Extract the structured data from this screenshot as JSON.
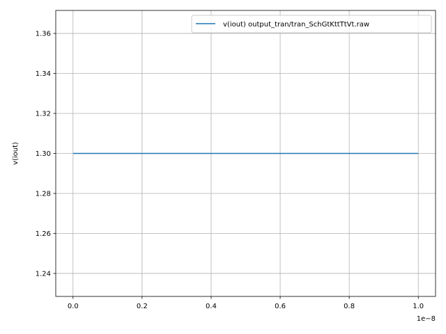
{
  "chart_data": {
    "type": "line",
    "title": "",
    "xlabel": "",
    "ylabel": "v(iout)",
    "x_offset_label": "1e−8",
    "xlim": [
      -0.05,
      1.05
    ],
    "ylim": [
      1.2285,
      1.3715
    ],
    "x_ticks": [
      0.0,
      0.2,
      0.4,
      0.6,
      0.8,
      1.0
    ],
    "x_tick_labels": [
      "0.0",
      "0.2",
      "0.4",
      "0.6",
      "0.8",
      "1.0"
    ],
    "y_ticks": [
      1.24,
      1.26,
      1.28,
      1.3,
      1.32,
      1.34,
      1.36
    ],
    "y_tick_labels": [
      "1.24",
      "1.26",
      "1.28",
      "1.30",
      "1.32",
      "1.34",
      "1.36"
    ],
    "grid": true,
    "legend_position": "top-right",
    "series": [
      {
        "name": "v(iout) output_tran/tran_SchGtKttTtVt.raw",
        "color": "#1f77b4",
        "x": [
          0.0,
          1.0
        ],
        "y": [
          1.3,
          1.3
        ]
      }
    ]
  }
}
